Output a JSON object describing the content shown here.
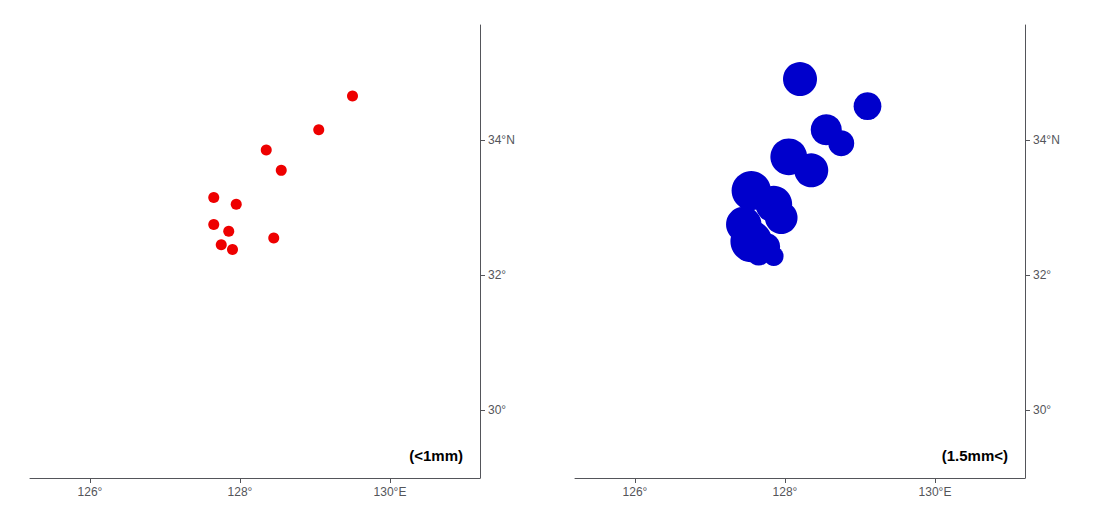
{
  "chart_data": [
    {
      "type": "scatter",
      "title": "(<1mm)",
      "color": "#EE0000",
      "x": [
        129.5,
        129.05,
        128.35,
        128.55,
        127.65,
        127.95,
        127.65,
        127.85,
        128.45,
        127.75,
        127.9
      ],
      "values": [
        34.65,
        34.15,
        33.85,
        33.55,
        33.15,
        33.05,
        32.75,
        32.65,
        32.55,
        32.45,
        32.38
      ],
      "xlim": [
        125.2,
        131.2
      ],
      "ylim": [
        29.0,
        35.7
      ],
      "xticks": [
        {
          "value": 126,
          "label": "126°"
        },
        {
          "value": 128,
          "label": "128°"
        },
        {
          "value": 130,
          "label": "130°E"
        }
      ],
      "yticks": [
        {
          "value": 30,
          "label": "30°"
        },
        {
          "value": 32,
          "label": "32°"
        },
        {
          "value": 34,
          "label": "34°N"
        }
      ],
      "grid": false
    },
    {
      "type": "scatter",
      "title": "(1.5mm<)",
      "color": "#0000CC",
      "x": [
        128.2,
        129.1,
        128.55,
        128.75,
        128.05,
        128.35,
        127.55,
        127.85,
        127.95,
        127.45,
        127.55,
        127.75,
        127.65,
        127.85
      ],
      "values": [
        34.9,
        34.5,
        34.15,
        33.95,
        33.75,
        33.55,
        33.25,
        33.05,
        32.85,
        32.75,
        32.5,
        32.42,
        32.32,
        32.28
      ],
      "sizes": [
        600,
        400,
        500,
        350,
        700,
        600,
        800,
        700,
        550,
        650,
        900,
        400,
        300,
        200
      ],
      "xlim": [
        125.2,
        131.2
      ],
      "ylim": [
        29.0,
        35.7
      ],
      "xticks": [
        {
          "value": 126,
          "label": "126°"
        },
        {
          "value": 128,
          "label": "128°"
        },
        {
          "value": 130,
          "label": "130°E"
        }
      ],
      "yticks": [
        {
          "value": 30,
          "label": "30°"
        },
        {
          "value": 32,
          "label": "32°"
        },
        {
          "value": 34,
          "label": "34°N"
        }
      ],
      "grid": false
    }
  ]
}
